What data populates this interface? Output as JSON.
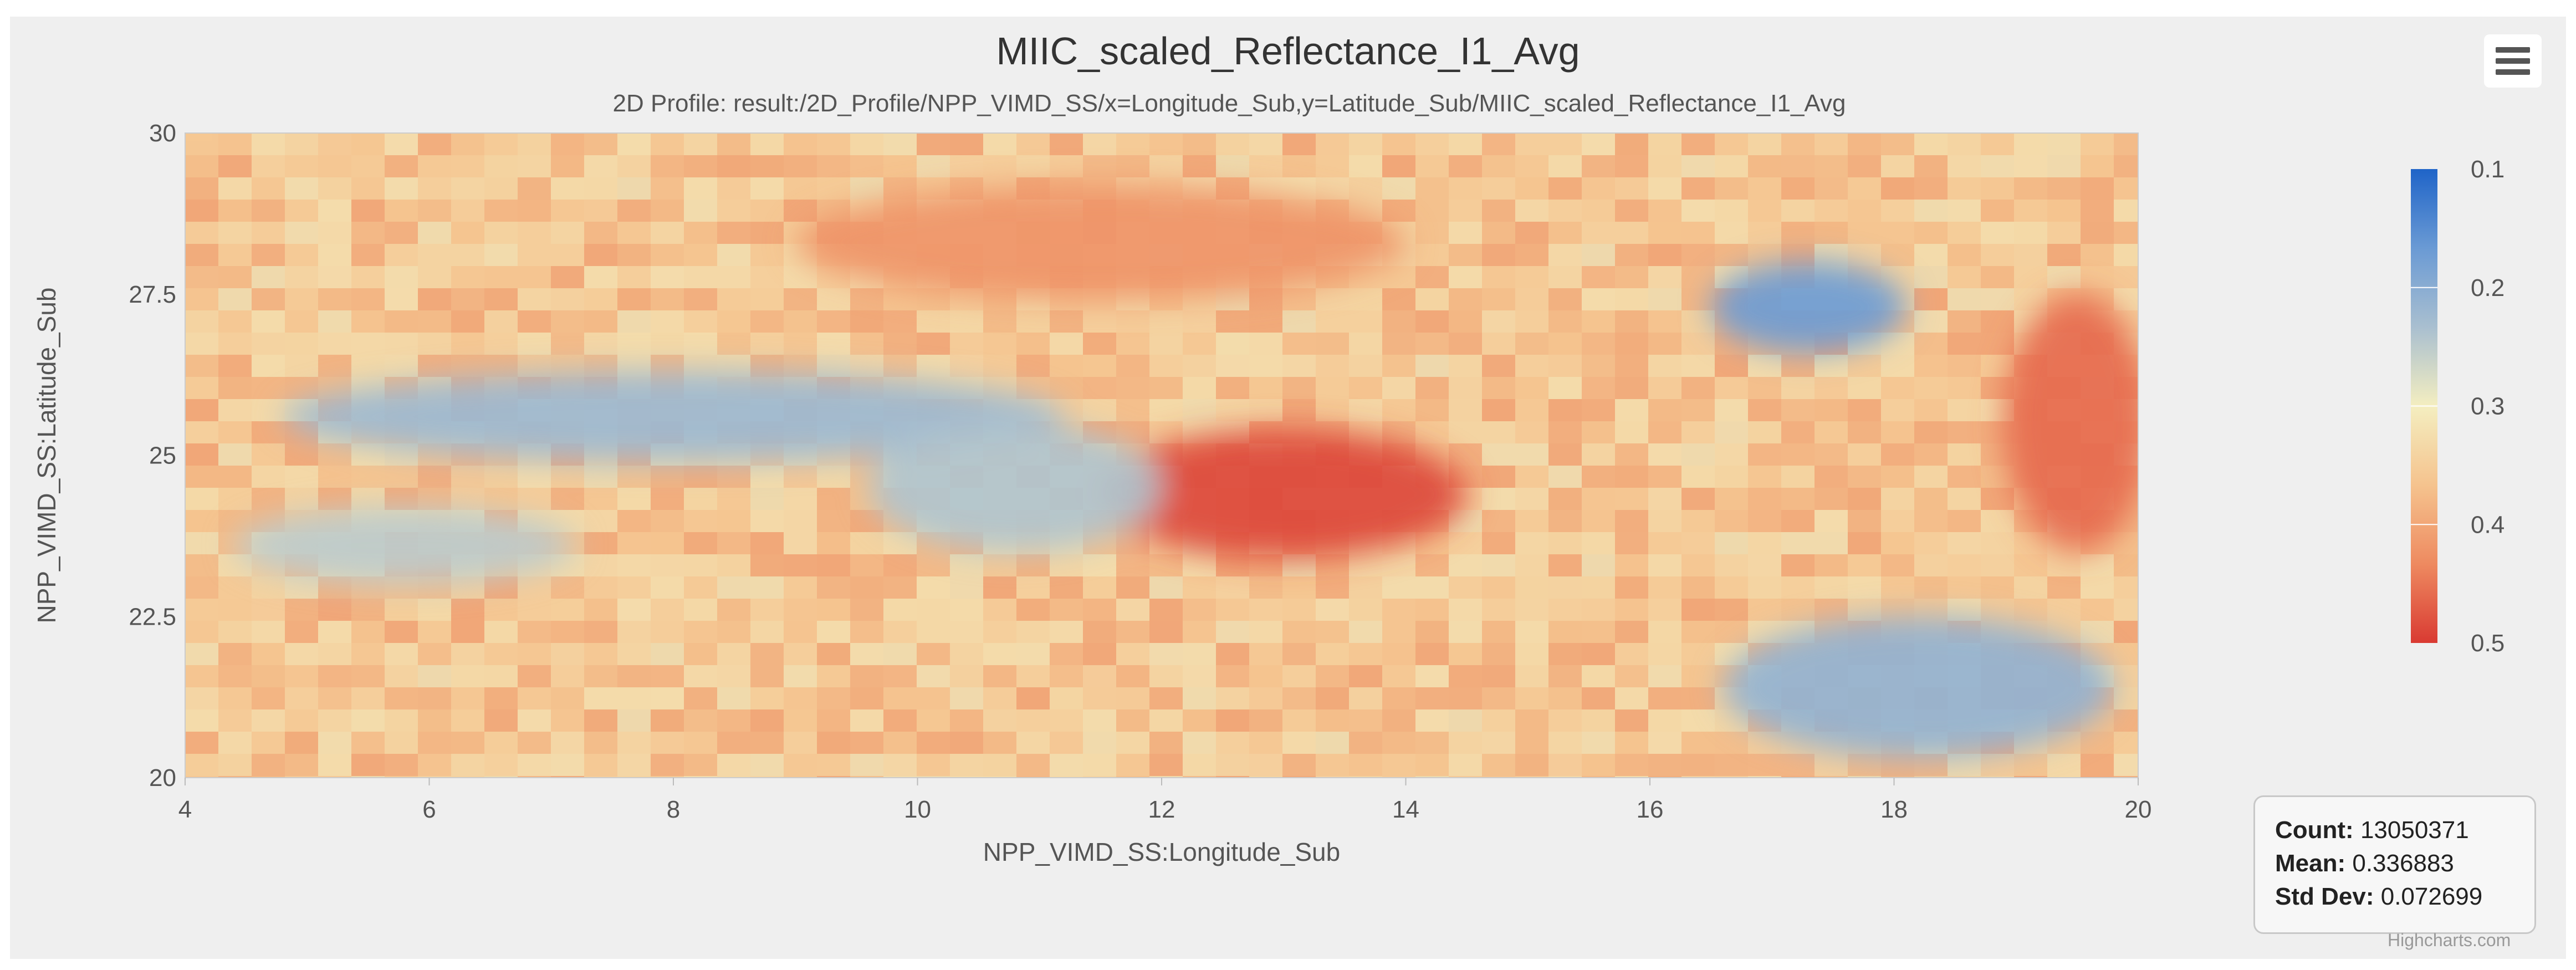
{
  "chart_data": {
    "type": "heatmap",
    "title": "MIIC_scaled_Reflectance_I1_Avg",
    "subtitle": "2D Profile: result:/2D_Profile/NPP_VIMD_SS/x=Longitude_Sub,y=Latitude_Sub/MIIC_scaled_Reflectance_I1_Avg",
    "xlabel": "NPP_VIMD_SS:Longitude_Sub",
    "ylabel": "NPP_VIMD_SS:Latitude_Sub",
    "xlim": [
      4,
      20
    ],
    "ylim": [
      20,
      30
    ],
    "x_ticks": [
      "4",
      "6",
      "8",
      "10",
      "12",
      "14",
      "16",
      "18",
      "20"
    ],
    "y_ticks": [
      "20",
      "22.5",
      "25",
      "27.5",
      "30"
    ],
    "colorbar": {
      "min": 0.1,
      "max": 0.5,
      "ticks": [
        "0.1",
        "0.2",
        "0.3",
        "0.4",
        "0.5"
      ],
      "colors": [
        "#1f64c8",
        "#6a9ad4",
        "#a9bfd0",
        "#f4eec0",
        "#f5c38e",
        "#ee8a60",
        "#d93a32"
      ],
      "placement": "right"
    },
    "regions": [
      {
        "name": "central-hot-spot",
        "x": 13.0,
        "y": 24.4,
        "rx": 1.5,
        "ry": 1.0,
        "value": 0.49
      },
      {
        "name": "northeast-cool-patch",
        "x": 17.3,
        "y": 27.3,
        "rx": 0.8,
        "ry": 0.7,
        "value": 0.17
      },
      {
        "name": "west-cool-band",
        "x": 8.0,
        "y": 25.6,
        "rx": 3.2,
        "ry": 0.7,
        "value": 0.22
      },
      {
        "name": "southeast-cool-area",
        "x": 18.2,
        "y": 21.4,
        "rx": 1.6,
        "ry": 1.1,
        "value": 0.21
      },
      {
        "name": "central-cool-band",
        "x": 10.8,
        "y": 24.5,
        "rx": 1.2,
        "ry": 1.0,
        "value": 0.24
      },
      {
        "name": "southwest-cool-area",
        "x": 5.8,
        "y": 23.6,
        "rx": 1.4,
        "ry": 0.6,
        "value": 0.25
      },
      {
        "name": "east-warm-edge",
        "x": 19.5,
        "y": 25.5,
        "rx": 0.6,
        "ry": 2.0,
        "value": 0.46
      },
      {
        "name": "north-warm-band",
        "x": 11.5,
        "y": 28.3,
        "rx": 2.5,
        "ry": 0.9,
        "value": 0.42
      }
    ],
    "base_value": 0.36,
    "legend": "none"
  },
  "stats": {
    "count_label": "Count:",
    "count_value": "13050371",
    "mean_label": "Mean:",
    "mean_value": "0.336883",
    "std_label": "Std Dev:",
    "std_value": "0.072699"
  },
  "credits": "Highcharts.com",
  "menu_icon": "hamburger-menu-icon"
}
